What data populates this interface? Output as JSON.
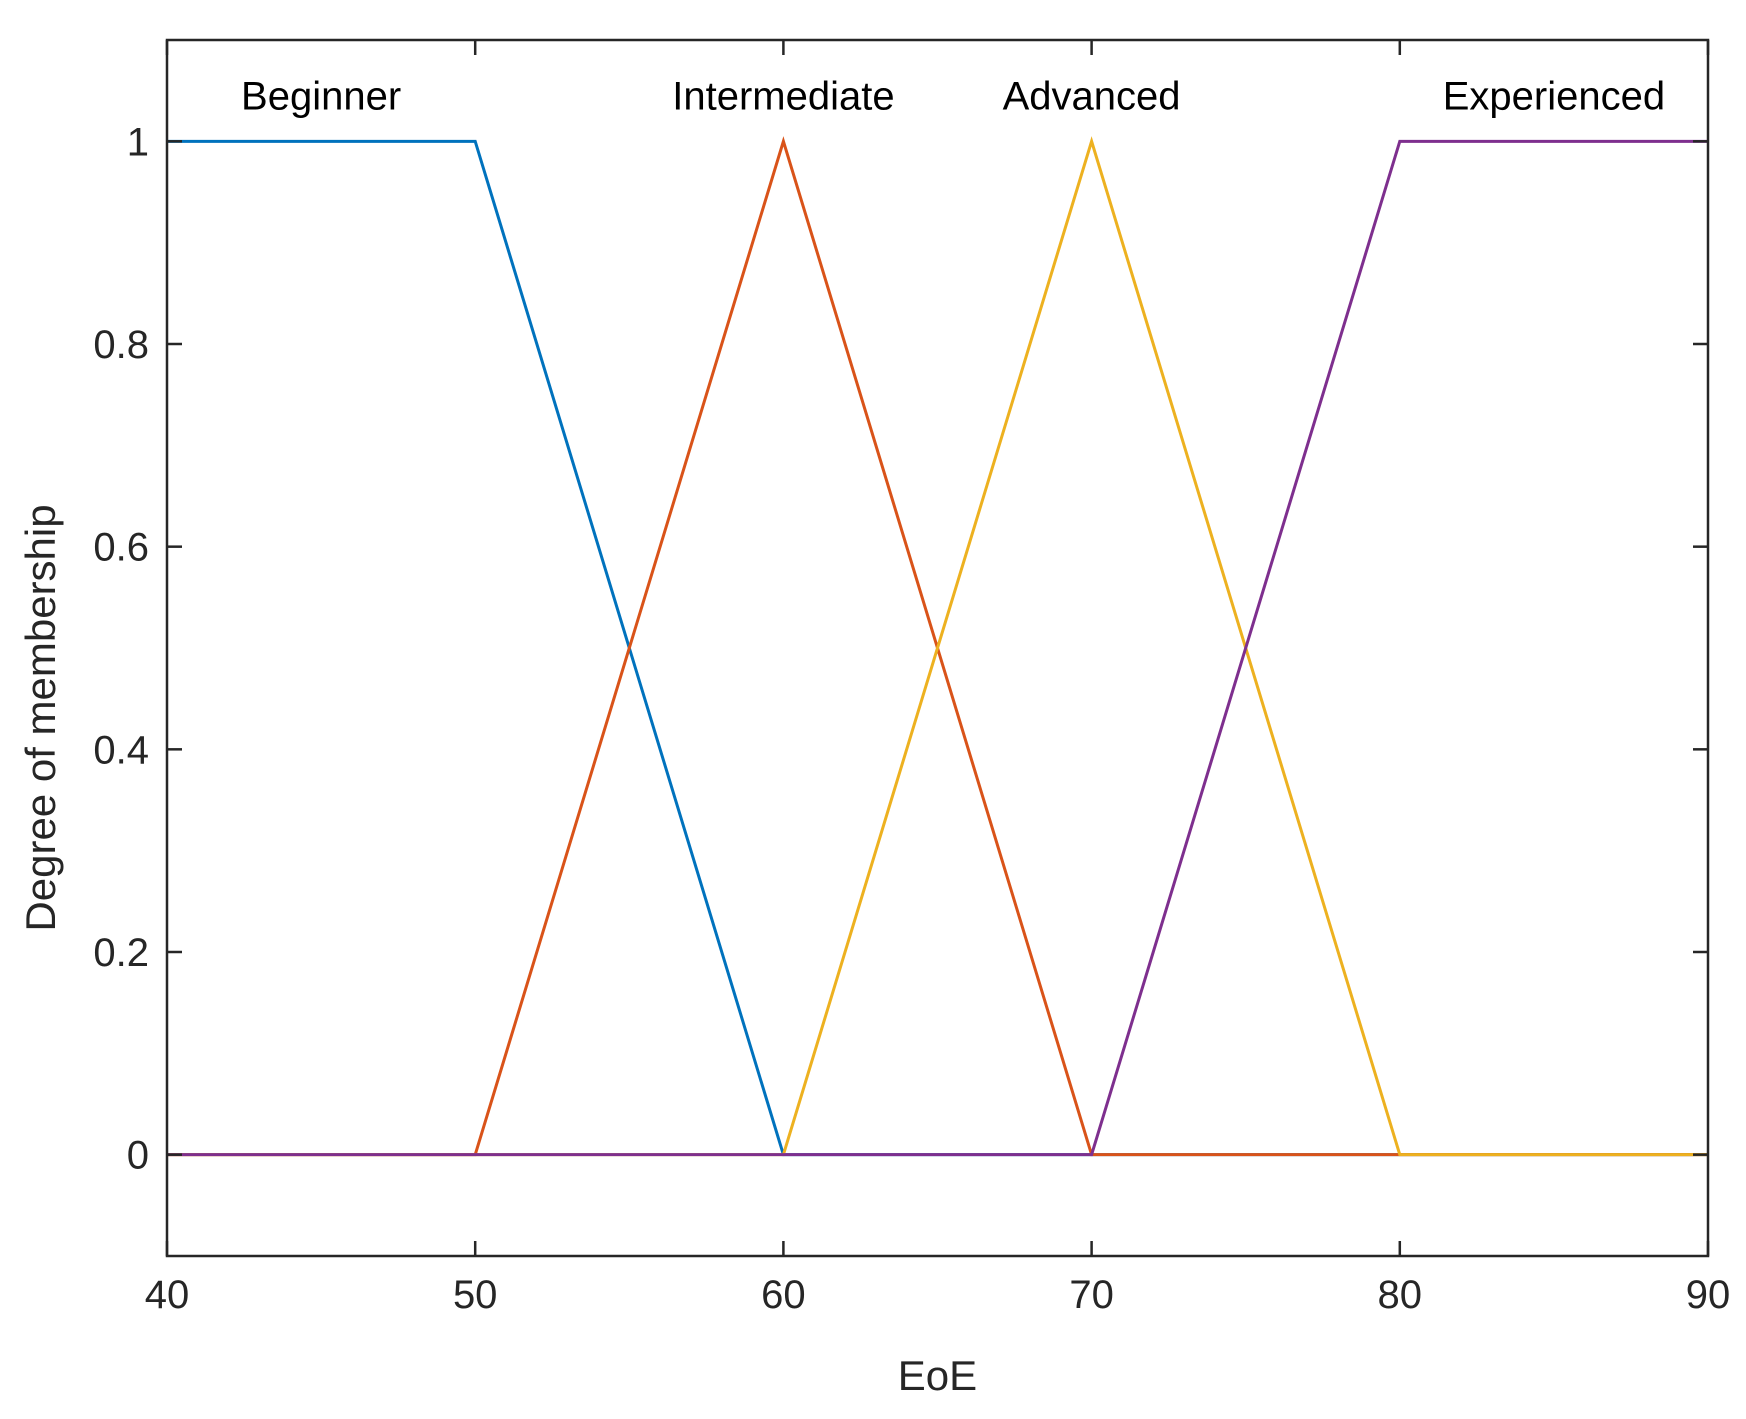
{
  "chart_data": {
    "type": "line",
    "title": "",
    "xlabel": "EoE",
    "ylabel": "Degree of membership",
    "xlim": [
      40,
      90
    ],
    "ylim": [
      -0.1,
      1.1
    ],
    "xticks": [
      40,
      50,
      60,
      70,
      80,
      90
    ],
    "yticks": [
      0,
      0.2,
      0.4,
      0.6,
      0.8,
      1
    ],
    "ytick_labels": [
      "0",
      "0.2",
      "0.4",
      "0.6",
      "0.8",
      "1"
    ],
    "grid": false,
    "legend": "none",
    "series": [
      {
        "name": "Beginner",
        "color": "#0072BD",
        "x": [
          40,
          50,
          60,
          90
        ],
        "y": [
          1,
          1,
          0,
          0
        ],
        "label_at": [
          45,
          1.045
        ]
      },
      {
        "name": "Intermediate",
        "color": "#D95319",
        "x": [
          40,
          50,
          60,
          70,
          90
        ],
        "y": [
          0,
          0,
          1,
          0,
          0
        ],
        "label_at": [
          60,
          1.045
        ]
      },
      {
        "name": "Advanced",
        "color": "#EDB120",
        "x": [
          40,
          60,
          70,
          80,
          90
        ],
        "y": [
          0,
          0,
          1,
          0,
          0
        ],
        "label_at": [
          70,
          1.045
        ]
      },
      {
        "name": "Experienced",
        "color": "#7E2F8E",
        "x": [
          40,
          70,
          80,
          90
        ],
        "y": [
          0,
          0,
          1,
          1
        ],
        "label_at": [
          85,
          1.045
        ]
      }
    ]
  }
}
